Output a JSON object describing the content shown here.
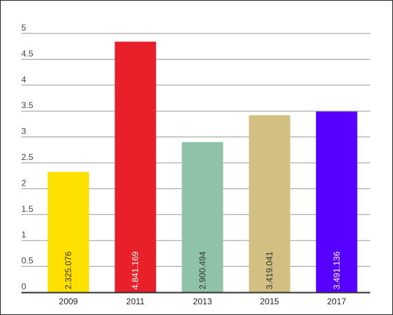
{
  "chart_data": {
    "type": "bar",
    "categories": [
      "2009",
      "2011",
      "2013",
      "2015",
      "2017"
    ],
    "values": [
      2.325076,
      4.841169,
      2.900494,
      3.419041,
      3.491136
    ],
    "data_labels": [
      "2.325.076",
      "4.841.169",
      "2.900.494",
      "3.419.041",
      "3.491.136"
    ],
    "bar_colors": [
      "#ffe100",
      "#e8202a",
      "#8fc3a7",
      "#d1c081",
      "#5700ff"
    ],
    "label_colors": [
      "#333333",
      "#ffffff",
      "#333333",
      "#333333",
      "#ffffff"
    ],
    "ylim": [
      0,
      5
    ],
    "yticks": [
      "0",
      "0.5",
      "1",
      "1.5",
      "2",
      "2.5",
      "3",
      "3.5",
      "4",
      "4.5",
      "5"
    ],
    "grid": true,
    "legend": "none",
    "title": "",
    "xlabel": "",
    "ylabel": ""
  }
}
